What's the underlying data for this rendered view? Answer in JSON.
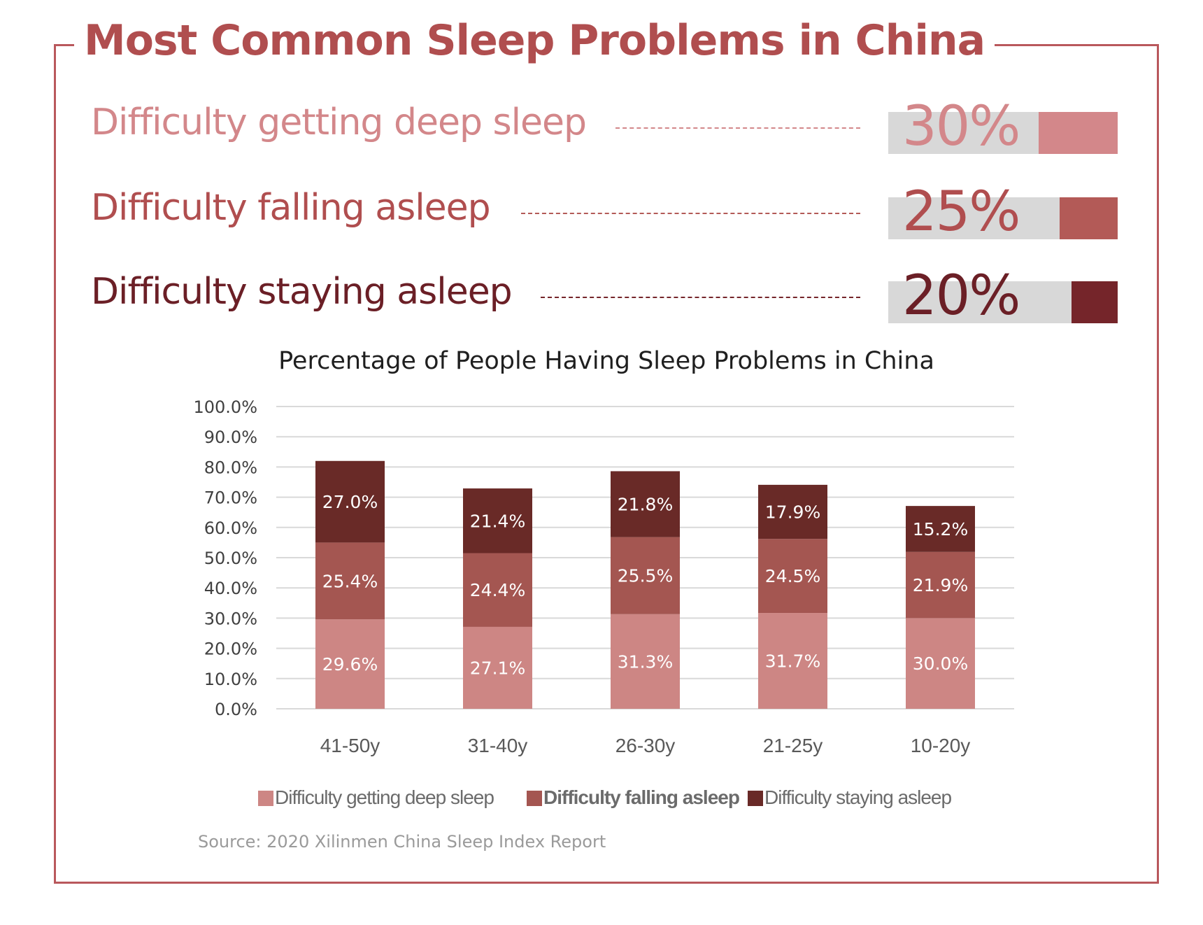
{
  "title": "Most Common Sleep Problems in China",
  "stats": [
    {
      "label": "Difficulty getting deep sleep",
      "value": "30%",
      "fraction": 0.3,
      "color": "#d3878a"
    },
    {
      "label": "Difficulty falling asleep",
      "value": "25%",
      "fraction": 0.25,
      "color": "#b35a57"
    },
    {
      "label": "Difficulty staying asleep",
      "value": "20%",
      "fraction": 0.2,
      "color": "#75252a"
    }
  ],
  "colors": {
    "frame": "#b9585c",
    "title": "#b04e4f",
    "stat_label_deep": "#d3878a",
    "stat_label_falling": "#b04e4f",
    "stat_label_staying": "#6b1f26",
    "stat_bar_bg": "#d8d8d8",
    "chart_deep": "#cd8684",
    "chart_falling": "#a45651",
    "chart_staying": "#692a27"
  },
  "chart_data": {
    "type": "bar",
    "stacked": true,
    "title": "Percentage of People Having Sleep Problems in China",
    "categories": [
      "41-50y",
      "31-40y",
      "26-30y",
      "21-25y",
      "10-20y"
    ],
    "series": [
      {
        "name": "Difficulty getting deep sleep",
        "values": [
          29.6,
          27.1,
          31.3,
          31.7,
          30.0
        ],
        "labels": [
          "29.6%",
          "27.1%",
          "31.3%",
          "31.7%",
          "30.0%"
        ],
        "color": "#cd8684"
      },
      {
        "name": "Difficulty falling asleep",
        "values": [
          25.4,
          24.4,
          25.5,
          24.5,
          21.9
        ],
        "labels": [
          "25.4%",
          "24.4%",
          "25.5%",
          "24.5%",
          "21.9%"
        ],
        "color": "#a45651"
      },
      {
        "name": "Difficulty staying asleep",
        "values": [
          27.0,
          21.4,
          21.8,
          17.9,
          15.2
        ],
        "labels": [
          "27.0%",
          "21.4%",
          "21.8%",
          "17.9%",
          "15.2%"
        ],
        "color": "#692a27"
      }
    ],
    "ylim": [
      0,
      100
    ],
    "yticks": [
      "0.0%",
      "10.0%",
      "20.0%",
      "30.0%",
      "40.0%",
      "50.0%",
      "60.0%",
      "70.0%",
      "80.0%",
      "90.0%",
      "100.0%"
    ],
    "grid": true,
    "legend_position": "bottom",
    "xlabel": "",
    "ylabel": ""
  },
  "legend": [
    {
      "label": "Difficulty getting deep sleep",
      "bold": false
    },
    {
      "label": "Difficulty falling asleep",
      "bold": true
    },
    {
      "label": "Difficulty staying asleep",
      "bold": false
    }
  ],
  "source": "Source: 2020 Xilinmen China Sleep Index Report"
}
